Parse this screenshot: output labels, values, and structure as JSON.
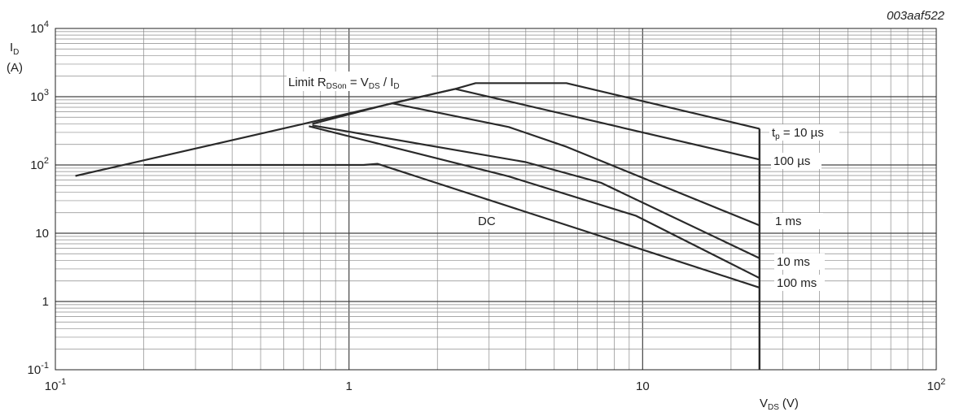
{
  "figure_id": "003aaf522",
  "chart_data": {
    "type": "line",
    "x_scale": "log",
    "y_scale": "log",
    "xlim": [
      0.1,
      100
    ],
    "ylim": [
      0.1,
      10000
    ],
    "grid": true,
    "xlabel": {
      "main": "V",
      "sub": "DS",
      "unit": "(V)"
    },
    "ylabel": {
      "main": "I",
      "sub": "D",
      "unit": "(A)"
    },
    "x_ticks": [
      {
        "value": 0.1,
        "base": "10",
        "exp": "-1",
        "text": ""
      },
      {
        "value": 1,
        "base": "",
        "exp": "",
        "text": "1"
      },
      {
        "value": 10,
        "base": "",
        "exp": "",
        "text": "10"
      },
      {
        "value": 100,
        "base": "10",
        "exp": "2",
        "text": ""
      }
    ],
    "y_ticks": [
      {
        "value": 0.1,
        "base": "10",
        "exp": "-1",
        "text": ""
      },
      {
        "value": 1,
        "base": "",
        "exp": "",
        "text": "1"
      },
      {
        "value": 10,
        "base": "",
        "exp": "",
        "text": "10"
      },
      {
        "value": 100,
        "base": "10",
        "exp": "2",
        "text": ""
      },
      {
        "value": 1000,
        "base": "10",
        "exp": "3",
        "text": ""
      },
      {
        "value": 10000,
        "base": "10",
        "exp": "4",
        "text": ""
      }
    ],
    "limit_line": {
      "label": {
        "a": "Limit R",
        "b": "DSon",
        "c": " = V",
        "d": "DS",
        "e": " / I",
        "f": "D"
      },
      "x": [
        0.117,
        0.7
      ],
      "y": [
        69,
        400
      ]
    },
    "vertical_limit": {
      "x": 25,
      "y": [
        0.1,
        340
      ]
    },
    "series": [
      {
        "name": "tp = 10 µs",
        "x": [
          0.7,
          2.3,
          2.7,
          5.5,
          25
        ],
        "y": [
          400,
          1300,
          1580,
          1580,
          340
        ]
      },
      {
        "name": "100 µs",
        "x": [
          1.4,
          2.3,
          25
        ],
        "y": [
          800,
          1300,
          120
        ]
      },
      {
        "name": "1 ms",
        "x": [
          0.75,
          1.4,
          3.5,
          5.5,
          25
        ],
        "y": [
          400,
          800,
          360,
          185,
          13
        ]
      },
      {
        "name": "10 ms",
        "x": [
          0.75,
          4.0,
          7.2,
          25
        ],
        "y": [
          380,
          110,
          55,
          4.3
        ]
      },
      {
        "name": "100 ms",
        "x": [
          0.73,
          3.5,
          9.5,
          25
        ],
        "y": [
          370,
          68,
          18,
          2.2
        ]
      },
      {
        "name": "DC",
        "x": [
          0.2,
          1.12,
          1.25,
          25
        ],
        "y": [
          100,
          100,
          104,
          1.6
        ]
      }
    ],
    "labels": [
      {
        "parts": [
          "t",
          "p",
          " = 10 µs"
        ]
      },
      {
        "parts": [
          "100 µs"
        ]
      },
      {
        "parts": [
          "1 ms"
        ]
      },
      {
        "parts": [
          "10 ms"
        ]
      },
      {
        "parts": [
          "100 ms"
        ]
      },
      {
        "parts": [
          "DC"
        ]
      }
    ]
  }
}
